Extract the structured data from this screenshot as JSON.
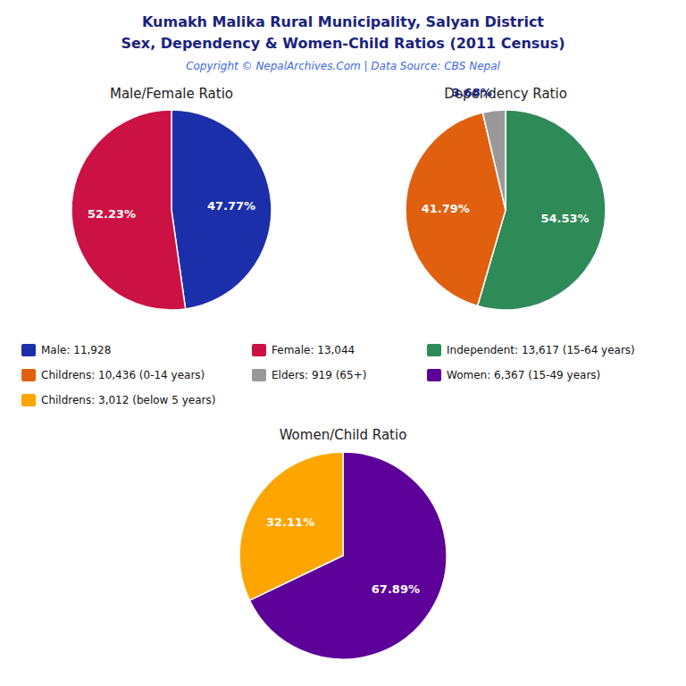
{
  "title": "Kumakh Malika Rural Municipality, Salyan District",
  "subtitle": "Sex, Dependency & Women-Child Ratios (2011 Census)",
  "annotations": [
    "Copyright © NepalArchives.Com | Data Source: CBS Nepal"
  ],
  "chart_data": [
    {
      "type": "pie",
      "title": "Male/Female Ratio",
      "categories": [
        "Male: 11,928",
        "Female: 13,044"
      ],
      "values": [
        47.77,
        52.23
      ],
      "value_labels": [
        "47.77%",
        "52.23%"
      ],
      "colors": [
        "#1c2faa",
        "#cc1144"
      ],
      "data_labels": true
    },
    {
      "type": "pie",
      "title": "Dependency Ratio",
      "categories": [
        "Independent: 13,617 (15-64 years)",
        "Childrens: 10,436 (0-14 years)",
        "Elders: 919 (65+)"
      ],
      "values": [
        54.53,
        41.79,
        3.68
      ],
      "value_labels": [
        "54.53%",
        "41.79%",
        "3.68%"
      ],
      "colors": [
        "#2e8b57",
        "#e06010",
        "#999999"
      ],
      "data_labels": true
    },
    {
      "type": "pie",
      "title": "Women/Child Ratio",
      "categories": [
        "Women: 6,367 (15-49 years)",
        "Childrens: 3,012 (below 5 years)"
      ],
      "values": [
        67.89,
        32.11
      ],
      "value_labels": [
        "67.89%",
        "32.11%"
      ],
      "colors": [
        "#5c0099",
        "#ffa500"
      ],
      "data_labels": true
    }
  ]
}
